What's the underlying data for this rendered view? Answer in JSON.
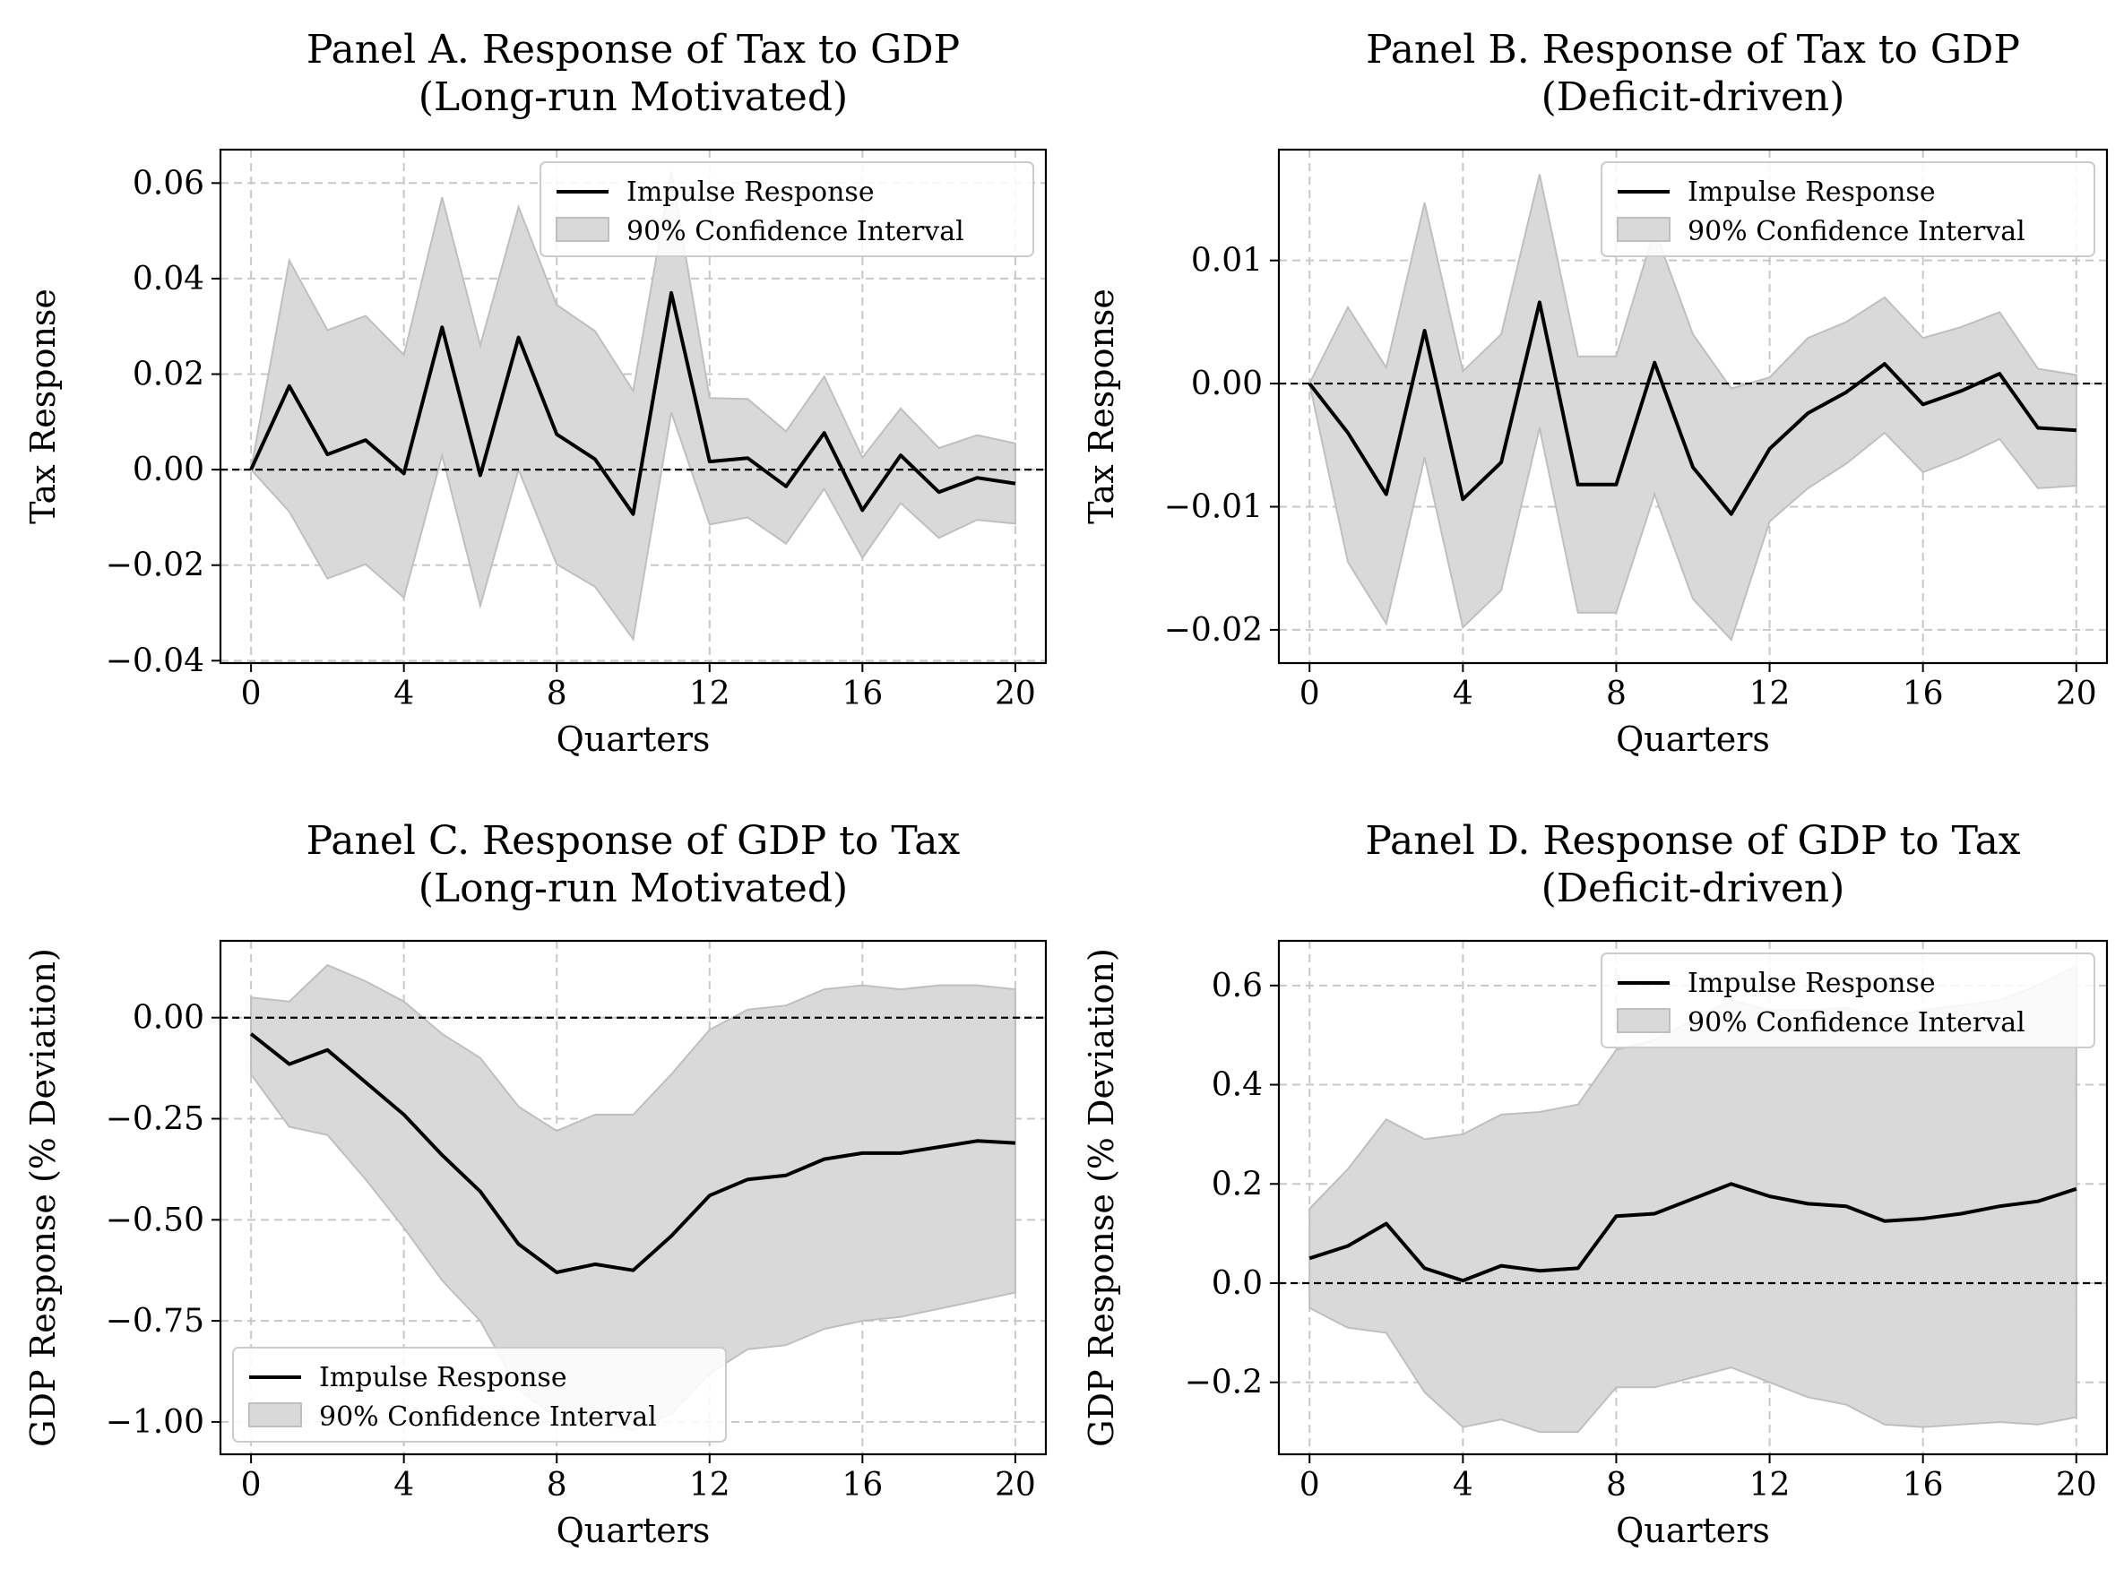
{
  "figure": {
    "legend_line_label": "Impulse Response",
    "legend_band_label": "90% Confidence Interval",
    "colors": {
      "line": "#000000",
      "band": "#d9d9d9",
      "band_edge": "#bfbfbf",
      "grid": "#c8c8c8",
      "zero_line": "#000000"
    }
  },
  "chart_data": [
    {
      "id": "A",
      "type": "line",
      "title": [
        "Panel A. Response of Tax to GDP",
        "(Long-run Motivated)"
      ],
      "xlabel": "Quarters",
      "ylabel": "Tax Response",
      "x": [
        0,
        1,
        2,
        3,
        4,
        5,
        6,
        7,
        8,
        9,
        10,
        11,
        12,
        13,
        14,
        15,
        16,
        17,
        18,
        19,
        20
      ],
      "xticks": [
        0,
        4,
        8,
        12,
        16,
        20
      ],
      "xlim": [
        -0.8,
        20.8
      ],
      "yticks": [
        -0.04,
        -0.02,
        0.0,
        0.02,
        0.04,
        0.06
      ],
      "ytick_labels": [
        "−0.04",
        "−0.02",
        "0.00",
        "0.02",
        "0.04",
        "0.06"
      ],
      "ylim": [
        -0.0405,
        0.067
      ],
      "grid": true,
      "zero_line": true,
      "legend_position": "upper-right",
      "series": [
        {
          "name": "Impulse Response",
          "values": [
            0.0,
            0.0175,
            0.0032,
            0.0062,
            -0.0008,
            0.0298,
            -0.0012,
            0.0277,
            0.0074,
            0.0022,
            -0.0093,
            0.037,
            0.0017,
            0.0024,
            -0.0035,
            0.0077,
            -0.0085,
            0.003,
            -0.0047,
            -0.0017,
            -0.0029
          ],
          "lower": [
            0.0,
            -0.0088,
            -0.0228,
            -0.0198,
            -0.0268,
            0.003,
            -0.0285,
            0.0,
            -0.0198,
            -0.0245,
            -0.0355,
            0.012,
            -0.0115,
            -0.01,
            -0.0155,
            -0.004,
            -0.0185,
            -0.007,
            -0.0143,
            -0.0105,
            -0.0113
          ],
          "upper": [
            0.0,
            0.0438,
            0.0292,
            0.0322,
            0.024,
            0.057,
            0.026,
            0.055,
            0.0345,
            0.029,
            0.0165,
            0.0625,
            0.015,
            0.0148,
            0.008,
            0.0195,
            0.0025,
            0.0128,
            0.0045,
            0.0072,
            0.0055
          ]
        }
      ]
    },
    {
      "id": "B",
      "type": "line",
      "title": [
        "Panel B. Response of Tax to GDP",
        "(Deficit-driven)"
      ],
      "xlabel": "Quarters",
      "ylabel": "Tax Response",
      "x": [
        0,
        1,
        2,
        3,
        4,
        5,
        6,
        7,
        8,
        9,
        10,
        11,
        12,
        13,
        14,
        15,
        16,
        17,
        18,
        19,
        20
      ],
      "xticks": [
        0,
        4,
        8,
        12,
        16,
        20
      ],
      "xlim": [
        -0.8,
        20.8
      ],
      "yticks": [
        -0.02,
        -0.01,
        0.0,
        0.01
      ],
      "ytick_labels": [
        "−0.02",
        "−0.01",
        "0.00",
        "0.01"
      ],
      "ylim": [
        -0.0227,
        0.019
      ],
      "grid": true,
      "zero_line": true,
      "legend_position": "upper-right",
      "series": [
        {
          "name": "Impulse Response",
          "values": [
            0.0,
            -0.004,
            -0.009,
            0.0043,
            -0.0094,
            -0.0064,
            0.0066,
            -0.0082,
            -0.0082,
            0.0017,
            -0.0068,
            -0.0106,
            -0.0053,
            -0.0024,
            -0.0007,
            0.0016,
            -0.0017,
            -0.0006,
            0.0008,
            -0.0036,
            -0.0038
          ],
          "lower": [
            0.0,
            -0.0145,
            -0.0195,
            -0.006,
            -0.0198,
            -0.0168,
            -0.0036,
            -0.0186,
            -0.0186,
            -0.009,
            -0.0175,
            -0.0208,
            -0.0112,
            -0.0085,
            -0.0065,
            -0.004,
            -0.0072,
            -0.006,
            -0.0045,
            -0.0085,
            -0.0083
          ],
          "upper": [
            0.0,
            0.0062,
            0.0013,
            0.0147,
            0.001,
            0.004,
            0.017,
            0.0022,
            0.0022,
            0.0125,
            0.004,
            -0.0004,
            0.0005,
            0.0037,
            0.005,
            0.007,
            0.0037,
            0.0046,
            0.0058,
            0.0012,
            0.0007
          ]
        }
      ]
    },
    {
      "id": "C",
      "type": "line",
      "title": [
        "Panel C. Response of GDP to Tax",
        "(Long-run Motivated)"
      ],
      "xlabel": "Quarters",
      "ylabel": "GDP Response (% Deviation)",
      "x": [
        0,
        1,
        2,
        3,
        4,
        5,
        6,
        7,
        8,
        9,
        10,
        11,
        12,
        13,
        14,
        15,
        16,
        17,
        18,
        19,
        20
      ],
      "xticks": [
        0,
        4,
        8,
        12,
        16,
        20
      ],
      "xlim": [
        -0.8,
        20.8
      ],
      "yticks": [
        -1.0,
        -0.75,
        -0.5,
        -0.25,
        0.0
      ],
      "ytick_labels": [
        "−1.00",
        "−0.75",
        "−0.50",
        "−0.25",
        "0.00"
      ],
      "ylim": [
        -1.08,
        0.19
      ],
      "grid": true,
      "zero_line": true,
      "legend_position": "lower-left",
      "series": [
        {
          "name": "Impulse Response",
          "values": [
            -0.04,
            -0.115,
            -0.08,
            -0.16,
            -0.24,
            -0.34,
            -0.43,
            -0.56,
            -0.63,
            -0.61,
            -0.625,
            -0.54,
            -0.44,
            -0.4,
            -0.39,
            -0.35,
            -0.335,
            -0.335,
            -0.32,
            -0.305,
            -0.31
          ],
          "lower": [
            -0.14,
            -0.27,
            -0.29,
            -0.4,
            -0.52,
            -0.65,
            -0.75,
            -0.92,
            -0.99,
            -1.0,
            -1.02,
            -0.98,
            -0.88,
            -0.82,
            -0.81,
            -0.77,
            -0.75,
            -0.74,
            -0.72,
            -0.7,
            -0.68
          ],
          "upper": [
            0.05,
            0.04,
            0.13,
            0.09,
            0.04,
            -0.04,
            -0.1,
            -0.22,
            -0.28,
            -0.24,
            -0.24,
            -0.14,
            -0.03,
            0.02,
            0.03,
            0.07,
            0.08,
            0.07,
            0.08,
            0.08,
            0.07
          ]
        }
      ]
    },
    {
      "id": "D",
      "type": "line",
      "title": [
        "Panel D. Response of GDP to Tax",
        "(Deficit-driven)"
      ],
      "xlabel": "Quarters",
      "ylabel": "GDP Response (% Deviation)",
      "x": [
        0,
        1,
        2,
        3,
        4,
        5,
        6,
        7,
        8,
        9,
        10,
        11,
        12,
        13,
        14,
        15,
        16,
        17,
        18,
        19,
        20
      ],
      "xticks": [
        0,
        4,
        8,
        12,
        16,
        20
      ],
      "xlim": [
        -0.8,
        20.8
      ],
      "yticks": [
        -0.2,
        0.0,
        0.2,
        0.4,
        0.6
      ],
      "ytick_labels": [
        "−0.2",
        "0.0",
        "0.2",
        "0.4",
        "0.6"
      ],
      "ylim": [
        -0.345,
        0.69
      ],
      "grid": true,
      "zero_line": true,
      "legend_position": "upper-right",
      "series": [
        {
          "name": "Impulse Response",
          "values": [
            0.05,
            0.075,
            0.12,
            0.03,
            0.005,
            0.035,
            0.025,
            0.03,
            0.135,
            0.14,
            0.17,
            0.2,
            0.175,
            0.16,
            0.155,
            0.125,
            0.13,
            0.14,
            0.155,
            0.165,
            0.19
          ],
          "lower": [
            -0.05,
            -0.09,
            -0.1,
            -0.22,
            -0.29,
            -0.275,
            -0.3,
            -0.3,
            -0.21,
            -0.21,
            -0.19,
            -0.17,
            -0.2,
            -0.23,
            -0.245,
            -0.285,
            -0.29,
            -0.285,
            -0.28,
            -0.285,
            -0.27
          ],
          "upper": [
            0.15,
            0.23,
            0.33,
            0.29,
            0.3,
            0.34,
            0.345,
            0.36,
            0.47,
            0.49,
            0.53,
            0.57,
            0.55,
            0.55,
            0.555,
            0.535,
            0.55,
            0.56,
            0.57,
            0.6,
            0.64
          ]
        }
      ]
    }
  ]
}
